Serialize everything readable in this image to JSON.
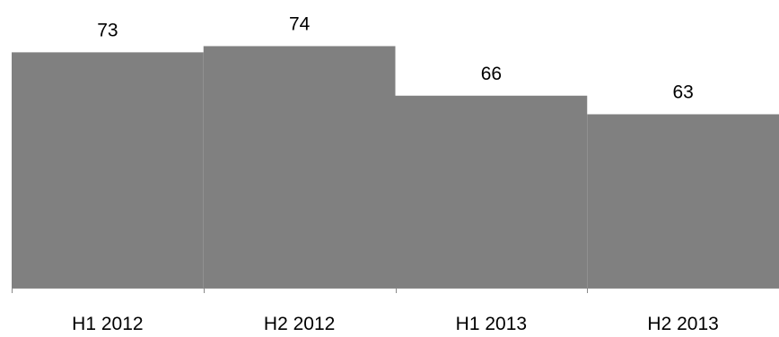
{
  "chart_data": {
    "type": "bar",
    "categories": [
      "H1 2012",
      "H2 2012",
      "H1 2013",
      "H2 2013"
    ],
    "values": [
      73,
      74,
      66,
      63
    ],
    "data_labels": [
      "73",
      "74",
      "66",
      "63"
    ],
    "title": "",
    "xlabel": "",
    "ylabel": "",
    "ylim": [
      35,
      80
    ],
    "grid": false,
    "legend": "none",
    "bar_gap": 0,
    "bar_color": "#808080",
    "axis_color": "#888888"
  }
}
